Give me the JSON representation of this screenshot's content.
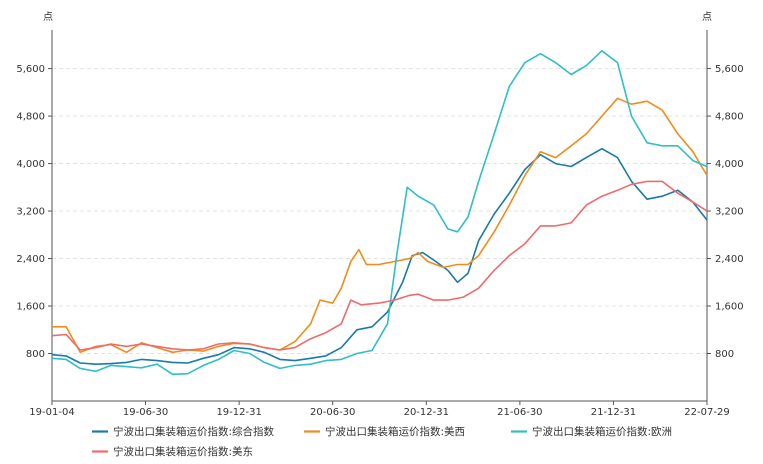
{
  "chart_data": {
    "type": "line",
    "left_unit": "点",
    "right_unit": "点",
    "y_ticks": [
      800,
      1600,
      2400,
      3200,
      4000,
      4800,
      5600
    ],
    "y_tick_labels": [
      "800",
      "1,600",
      "2,400",
      "3,200",
      "4,000",
      "4,800",
      "5,600"
    ],
    "ylim": [
      0,
      6250
    ],
    "x_ticks": [
      "19-01-04",
      "19-06-30",
      "19-12-31",
      "20-06-30",
      "20-12-31",
      "21-06-30",
      "21-12-31",
      "22-07-29"
    ],
    "xlim": [
      "2019-01-04",
      "2022-07-29"
    ],
    "grid": "horizontal dashed",
    "legend_position": "bottom",
    "series": [
      {
        "name": "宁波出口集装箱运价指数:综合指数",
        "color": "#1a7aa8",
        "points": [
          [
            "2019-01-04",
            780
          ],
          [
            "2019-02-01",
            760
          ],
          [
            "2019-03-01",
            640
          ],
          [
            "2019-04-01",
            620
          ],
          [
            "2019-05-01",
            630
          ],
          [
            "2019-06-01",
            650
          ],
          [
            "2019-07-01",
            700
          ],
          [
            "2019-08-01",
            680
          ],
          [
            "2019-09-01",
            650
          ],
          [
            "2019-10-01",
            640
          ],
          [
            "2019-11-01",
            720
          ],
          [
            "2019-12-01",
            780
          ],
          [
            "2020-01-01",
            900
          ],
          [
            "2020-02-01",
            880
          ],
          [
            "2020-03-01",
            820
          ],
          [
            "2020-04-01",
            700
          ],
          [
            "2020-05-01",
            680
          ],
          [
            "2020-06-01",
            720
          ],
          [
            "2020-07-01",
            760
          ],
          [
            "2020-08-01",
            900
          ],
          [
            "2020-09-01",
            1200
          ],
          [
            "2020-10-01",
            1250
          ],
          [
            "2020-11-01",
            1500
          ],
          [
            "2020-12-01",
            2000
          ],
          [
            "2020-12-20",
            2450
          ],
          [
            "2021-01-10",
            2500
          ],
          [
            "2021-02-05",
            2350
          ],
          [
            "2021-03-01",
            2200
          ],
          [
            "2021-03-20",
            2000
          ],
          [
            "2021-04-10",
            2150
          ],
          [
            "2021-05-01",
            2700
          ],
          [
            "2021-06-01",
            3150
          ],
          [
            "2021-07-01",
            3500
          ],
          [
            "2021-08-01",
            3900
          ],
          [
            "2021-09-01",
            4150
          ],
          [
            "2021-10-01",
            4000
          ],
          [
            "2021-11-01",
            3950
          ],
          [
            "2021-12-01",
            4100
          ],
          [
            "2022-01-01",
            4250
          ],
          [
            "2022-02-01",
            4100
          ],
          [
            "2022-03-01",
            3700
          ],
          [
            "2022-04-01",
            3400
          ],
          [
            "2022-05-01",
            3450
          ],
          [
            "2022-06-01",
            3550
          ],
          [
            "2022-07-01",
            3350
          ],
          [
            "2022-07-29",
            3050
          ]
        ]
      },
      {
        "name": "宁波出口集装箱运价指数:美西",
        "color": "#f08c1e",
        "points": [
          [
            "2019-01-04",
            1250
          ],
          [
            "2019-02-01",
            1250
          ],
          [
            "2019-03-01",
            820
          ],
          [
            "2019-04-01",
            920
          ],
          [
            "2019-05-01",
            950
          ],
          [
            "2019-06-01",
            820
          ],
          [
            "2019-07-01",
            980
          ],
          [
            "2019-08-01",
            900
          ],
          [
            "2019-09-01",
            820
          ],
          [
            "2019-10-01",
            860
          ],
          [
            "2019-11-01",
            840
          ],
          [
            "2019-12-01",
            920
          ],
          [
            "2020-01-01",
            970
          ],
          [
            "2020-02-01",
            960
          ],
          [
            "2020-03-01",
            900
          ],
          [
            "2020-04-01",
            860
          ],
          [
            "2020-05-01",
            1000
          ],
          [
            "2020-06-01",
            1300
          ],
          [
            "2020-06-20",
            1700
          ],
          [
            "2020-07-15",
            1650
          ],
          [
            "2020-08-01",
            1900
          ],
          [
            "2020-08-20",
            2350
          ],
          [
            "2020-09-05",
            2550
          ],
          [
            "2020-09-20",
            2300
          ],
          [
            "2020-10-15",
            2300
          ],
          [
            "2020-11-15",
            2350
          ],
          [
            "2020-12-15",
            2400
          ],
          [
            "2021-01-01",
            2500
          ],
          [
            "2021-01-20",
            2350
          ],
          [
            "2021-02-20",
            2250
          ],
          [
            "2021-03-20",
            2300
          ],
          [
            "2021-04-10",
            2300
          ],
          [
            "2021-05-01",
            2450
          ],
          [
            "2021-06-01",
            2850
          ],
          [
            "2021-07-01",
            3300
          ],
          [
            "2021-08-01",
            3800
          ],
          [
            "2021-09-01",
            4200
          ],
          [
            "2021-10-01",
            4100
          ],
          [
            "2021-11-01",
            4300
          ],
          [
            "2021-12-01",
            4500
          ],
          [
            "2022-01-01",
            4800
          ],
          [
            "2022-02-01",
            5100
          ],
          [
            "2022-03-01",
            5000
          ],
          [
            "2022-04-01",
            5050
          ],
          [
            "2022-05-01",
            4900
          ],
          [
            "2022-06-01",
            4500
          ],
          [
            "2022-07-01",
            4200
          ],
          [
            "2022-07-29",
            3800
          ]
        ]
      },
      {
        "name": "宁波出口集装箱运价指数:欧洲",
        "color": "#2fbfc4",
        "points": [
          [
            "2019-01-04",
            720
          ],
          [
            "2019-02-01",
            700
          ],
          [
            "2019-03-01",
            550
          ],
          [
            "2019-04-01",
            500
          ],
          [
            "2019-05-01",
            600
          ],
          [
            "2019-06-01",
            580
          ],
          [
            "2019-07-01",
            560
          ],
          [
            "2019-08-01",
            620
          ],
          [
            "2019-09-01",
            450
          ],
          [
            "2019-10-01",
            460
          ],
          [
            "2019-11-01",
            600
          ],
          [
            "2019-12-01",
            700
          ],
          [
            "2020-01-01",
            850
          ],
          [
            "2020-02-01",
            800
          ],
          [
            "2020-03-01",
            650
          ],
          [
            "2020-04-01",
            550
          ],
          [
            "2020-05-01",
            600
          ],
          [
            "2020-06-01",
            620
          ],
          [
            "2020-07-01",
            680
          ],
          [
            "2020-08-01",
            700
          ],
          [
            "2020-09-01",
            800
          ],
          [
            "2020-10-01",
            850
          ],
          [
            "2020-11-01",
            1300
          ],
          [
            "2020-11-20",
            2500
          ],
          [
            "2020-12-10",
            3600
          ],
          [
            "2021-01-01",
            3450
          ],
          [
            "2021-02-01",
            3300
          ],
          [
            "2021-03-01",
            2900
          ],
          [
            "2021-03-20",
            2850
          ],
          [
            "2021-04-10",
            3100
          ],
          [
            "2021-05-01",
            3700
          ],
          [
            "2021-06-01",
            4500
          ],
          [
            "2021-07-01",
            5300
          ],
          [
            "2021-08-01",
            5700
          ],
          [
            "2021-09-01",
            5850
          ],
          [
            "2021-10-01",
            5700
          ],
          [
            "2021-11-01",
            5500
          ],
          [
            "2021-12-01",
            5650
          ],
          [
            "2022-01-01",
            5900
          ],
          [
            "2022-02-01",
            5700
          ],
          [
            "2022-03-01",
            4800
          ],
          [
            "2022-04-01",
            4350
          ],
          [
            "2022-05-01",
            4300
          ],
          [
            "2022-06-01",
            4300
          ],
          [
            "2022-07-01",
            4050
          ],
          [
            "2022-07-29",
            3950
          ]
        ]
      },
      {
        "name": "宁波出口集装箱运价指数:美东",
        "color": "#f06a6a",
        "points": [
          [
            "2019-01-04",
            1100
          ],
          [
            "2019-02-01",
            1120
          ],
          [
            "2019-03-01",
            860
          ],
          [
            "2019-04-01",
            900
          ],
          [
            "2019-05-01",
            960
          ],
          [
            "2019-06-01",
            920
          ],
          [
            "2019-07-01",
            960
          ],
          [
            "2019-08-01",
            920
          ],
          [
            "2019-09-01",
            880
          ],
          [
            "2019-10-01",
            860
          ],
          [
            "2019-11-01",
            880
          ],
          [
            "2019-12-01",
            960
          ],
          [
            "2020-01-01",
            980
          ],
          [
            "2020-02-01",
            960
          ],
          [
            "2020-03-01",
            900
          ],
          [
            "2020-04-01",
            860
          ],
          [
            "2020-05-01",
            900
          ],
          [
            "2020-06-01",
            1050
          ],
          [
            "2020-07-01",
            1150
          ],
          [
            "2020-08-01",
            1300
          ],
          [
            "2020-08-20",
            1700
          ],
          [
            "2020-09-10",
            1620
          ],
          [
            "2020-10-15",
            1650
          ],
          [
            "2020-11-15",
            1700
          ],
          [
            "2020-12-15",
            1780
          ],
          [
            "2021-01-01",
            1800
          ],
          [
            "2021-02-01",
            1700
          ],
          [
            "2021-03-01",
            1700
          ],
          [
            "2021-04-01",
            1750
          ],
          [
            "2021-05-01",
            1900
          ],
          [
            "2021-06-01",
            2200
          ],
          [
            "2021-07-01",
            2450
          ],
          [
            "2021-08-01",
            2650
          ],
          [
            "2021-09-01",
            2950
          ],
          [
            "2021-10-01",
            2950
          ],
          [
            "2021-11-01",
            3000
          ],
          [
            "2021-12-01",
            3300
          ],
          [
            "2022-01-01",
            3450
          ],
          [
            "2022-02-01",
            3550
          ],
          [
            "2022-03-01",
            3650
          ],
          [
            "2022-04-01",
            3700
          ],
          [
            "2022-05-01",
            3700
          ],
          [
            "2022-06-01",
            3500
          ],
          [
            "2022-07-01",
            3350
          ],
          [
            "2022-07-29",
            3200
          ]
        ]
      }
    ]
  }
}
